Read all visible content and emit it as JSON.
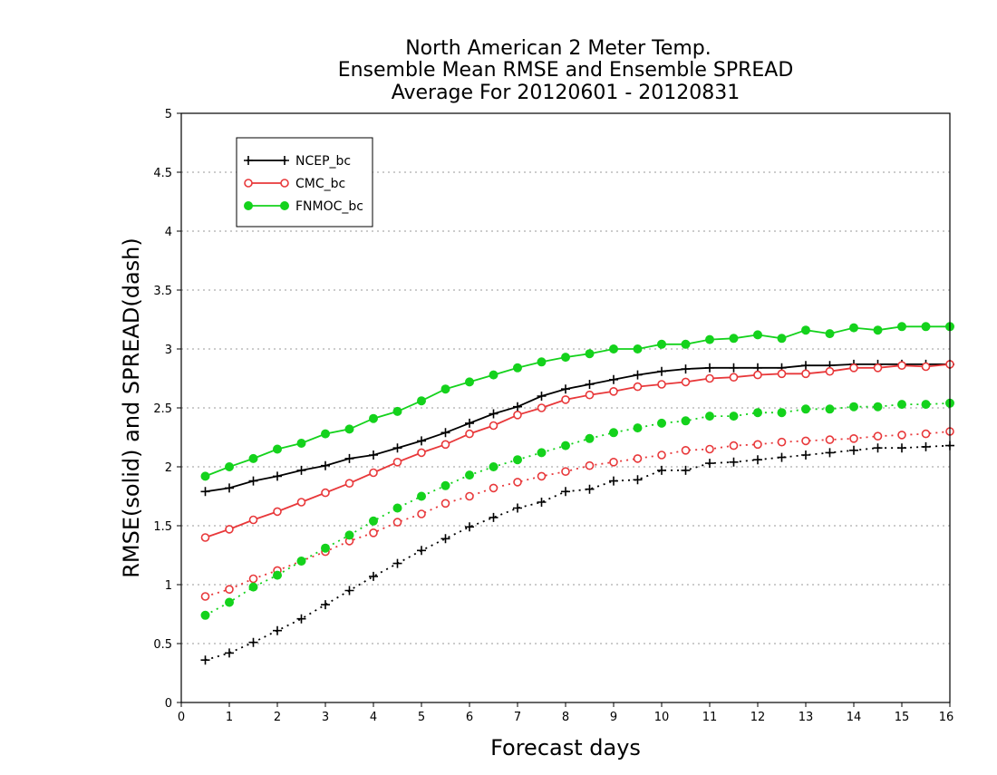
{
  "chart_data": {
    "type": "line",
    "title": [
      "North American 2 Meter Temp.",
      "Ensemble Mean RMSE and Ensemble SPREAD",
      "Average For 20120601 - 20120831"
    ],
    "xlabel": "Forecast days",
    "ylabel": "RMSE(solid) and SPREAD(dash)",
    "xlim": [
      0,
      16
    ],
    "ylim": [
      0,
      5
    ],
    "xticks": [
      "0",
      "1",
      "2",
      "3",
      "4",
      "5",
      "6",
      "7",
      "8",
      "9",
      "10",
      "11",
      "12",
      "13",
      "14",
      "15",
      "16"
    ],
    "yticks": [
      "0",
      "0.5",
      "1",
      "1.5",
      "2",
      "2.5",
      "3",
      "3.5",
      "4",
      "4.5",
      "5"
    ],
    "grid": true,
    "legend_position": "top-left",
    "x": [
      0.5,
      1,
      1.5,
      2,
      2.5,
      3,
      3.5,
      4,
      4.5,
      5,
      5.5,
      6,
      6.5,
      7,
      7.5,
      8,
      8.5,
      9,
      9.5,
      10,
      10.5,
      11,
      11.5,
      12,
      12.5,
      13,
      13.5,
      14,
      14.5,
      15,
      15.5,
      16
    ],
    "series": [
      {
        "name": "NCEP_bc",
        "color": "#000000",
        "marker": "plus",
        "rmse": [
          1.79,
          1.82,
          1.88,
          1.92,
          1.97,
          2.01,
          2.07,
          2.1,
          2.16,
          2.22,
          2.29,
          2.37,
          2.45,
          2.51,
          2.6,
          2.66,
          2.7,
          2.74,
          2.78,
          2.81,
          2.83,
          2.84,
          2.84,
          2.84,
          2.84,
          2.86,
          2.86,
          2.87,
          2.87,
          2.87,
          2.87,
          2.87
        ],
        "spread": [
          0.36,
          0.42,
          0.51,
          0.61,
          0.71,
          0.83,
          0.95,
          1.07,
          1.18,
          1.29,
          1.39,
          1.49,
          1.57,
          1.65,
          1.7,
          1.79,
          1.81,
          1.88,
          1.89,
          1.97,
          1.97,
          2.03,
          2.04,
          2.06,
          2.08,
          2.1,
          2.12,
          2.14,
          2.16,
          2.16,
          2.17,
          2.18
        ]
      },
      {
        "name": "CMC_bc",
        "color": "#e8383a",
        "marker": "open-circle",
        "rmse": [
          1.4,
          1.47,
          1.55,
          1.62,
          1.7,
          1.78,
          1.86,
          1.95,
          2.04,
          2.12,
          2.19,
          2.28,
          2.35,
          2.44,
          2.5,
          2.57,
          2.61,
          2.64,
          2.68,
          2.7,
          2.72,
          2.75,
          2.76,
          2.78,
          2.79,
          2.79,
          2.81,
          2.84,
          2.84,
          2.86,
          2.85,
          2.87
        ],
        "spread": [
          0.9,
          0.96,
          1.05,
          1.12,
          1.2,
          1.28,
          1.37,
          1.44,
          1.53,
          1.6,
          1.69,
          1.75,
          1.82,
          1.87,
          1.92,
          1.96,
          2.01,
          2.04,
          2.07,
          2.1,
          2.14,
          2.15,
          2.18,
          2.19,
          2.21,
          2.22,
          2.23,
          2.24,
          2.26,
          2.27,
          2.28,
          2.3
        ]
      },
      {
        "name": "FNMOC_bc",
        "color": "#14d21c",
        "marker": "filled-circle",
        "rmse": [
          1.92,
          2.0,
          2.07,
          2.15,
          2.2,
          2.28,
          2.32,
          2.41,
          2.47,
          2.56,
          2.66,
          2.72,
          2.78,
          2.84,
          2.89,
          2.93,
          2.96,
          3.0,
          3.0,
          3.04,
          3.04,
          3.08,
          3.09,
          3.12,
          3.09,
          3.16,
          3.13,
          3.18,
          3.16,
          3.19,
          3.19,
          3.19
        ],
        "spread": [
          0.74,
          0.85,
          0.98,
          1.08,
          1.2,
          1.31,
          1.42,
          1.54,
          1.65,
          1.75,
          1.84,
          1.93,
          2.0,
          2.06,
          2.12,
          2.18,
          2.24,
          2.29,
          2.33,
          2.37,
          2.39,
          2.43,
          2.43,
          2.46,
          2.46,
          2.49,
          2.49,
          2.51,
          2.51,
          2.53,
          2.53,
          2.54
        ]
      }
    ]
  }
}
